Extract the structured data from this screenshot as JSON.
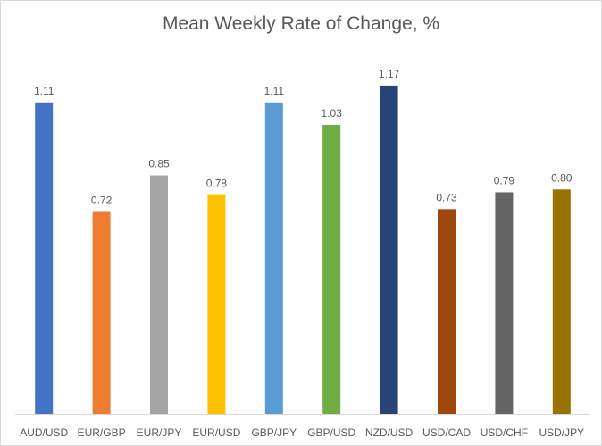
{
  "chart_data": {
    "type": "bar",
    "title": "Mean Weekly Rate of Change, %",
    "xlabel": "",
    "ylabel": "",
    "ylim": [
      0,
      1.3
    ],
    "grid": false,
    "legend": "none",
    "categories": [
      "AUD/USD",
      "EUR/GBP",
      "EUR/JPY",
      "EUR/USD",
      "GBP/JPY",
      "GBP/USD",
      "NZD/USD",
      "USD/CAD",
      "USD/CHF",
      "USD/JPY"
    ],
    "values": [
      1.11,
      0.72,
      0.85,
      0.78,
      1.11,
      1.03,
      1.17,
      0.73,
      0.79,
      0.8
    ],
    "data_labels": [
      "1.11",
      "0.72",
      "0.85",
      "0.78",
      "1.11",
      "1.03",
      "1.17",
      "0.73",
      "0.79",
      "0.80"
    ],
    "colors": [
      "#4472c4",
      "#ed7d31",
      "#a5a5a5",
      "#ffc000",
      "#5b9bd5",
      "#70ad47",
      "#264478",
      "#9e480e",
      "#636363",
      "#997300"
    ]
  }
}
